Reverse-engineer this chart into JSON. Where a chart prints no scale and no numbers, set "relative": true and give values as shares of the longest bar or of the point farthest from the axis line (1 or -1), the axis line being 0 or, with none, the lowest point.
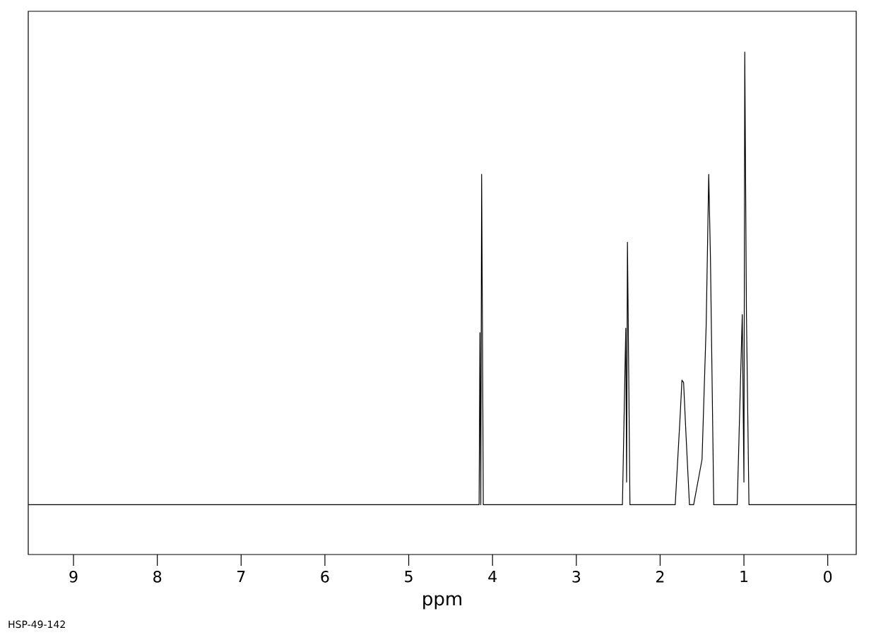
{
  "chart_data": {
    "type": "line",
    "relative": true,
    "xlabel": "ppm",
    "annotations": [
      "HSP-49-142"
    ],
    "xlim": [
      9.54,
      -0.34
    ],
    "xticks": [
      9,
      8,
      7,
      6,
      5,
      4,
      3,
      2,
      1,
      0
    ],
    "series": [
      {
        "color": "#000000",
        "x": [
          9.54,
          4.3,
          4.16,
          4.15,
          4.14,
          4.13,
          4.12,
          4.11,
          4.0,
          2.45,
          2.41,
          2.4,
          2.39,
          2.38,
          2.36,
          1.82,
          1.76,
          1.74,
          1.72,
          1.69,
          1.65,
          1.6,
          1.5,
          1.45,
          1.42,
          1.4,
          1.36,
          1.08,
          1.02,
          1.0,
          0.99,
          0.97,
          0.94,
          -0.34
        ],
        "values": [
          0,
          0,
          0,
          0.38,
          0,
          0.73,
          0.38,
          0,
          0,
          0,
          0.39,
          0.05,
          0.58,
          0.39,
          0,
          0,
          0.2,
          0.275,
          0.27,
          0.15,
          0,
          0,
          0.1,
          0.4,
          0.73,
          0.55,
          0,
          0,
          0.42,
          0.05,
          1.0,
          0.42,
          0,
          0
        ]
      }
    ]
  }
}
